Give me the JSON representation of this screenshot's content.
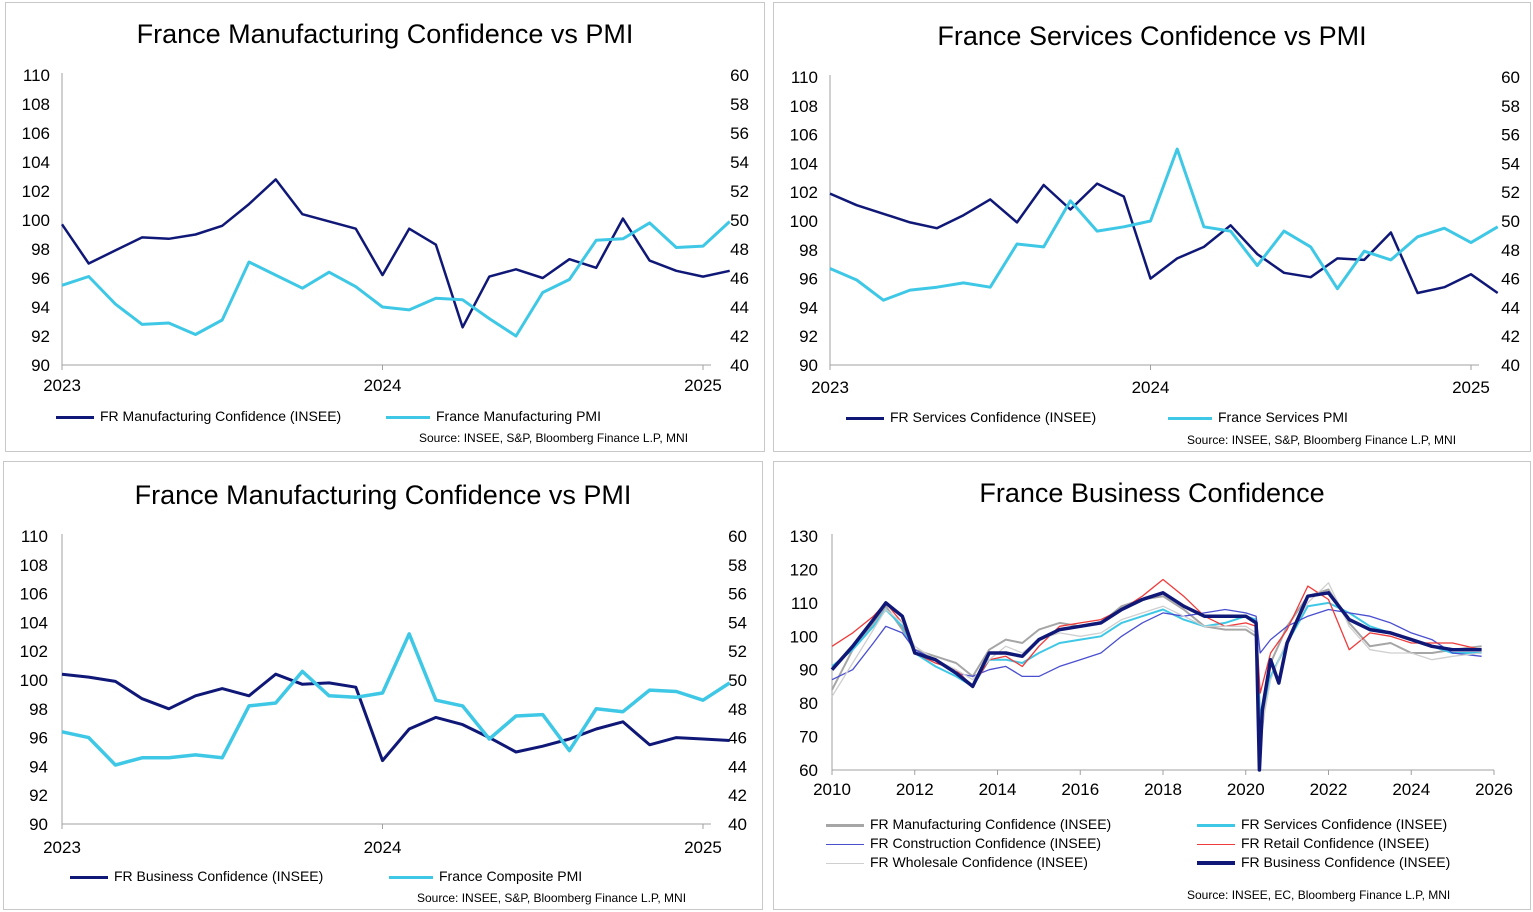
{
  "colors": {
    "navy": "#101877",
    "cyan": "#3fc8e6",
    "grey": "#a6a6a6",
    "blue": "#4a4fd0",
    "red": "#ef3b3b",
    "lightgrey": "#cfcfcf",
    "axis": "#bfbfbf"
  },
  "chart_data": [
    {
      "type": "line",
      "title": "France Manufacturing Confidence vs PMI",
      "x_ticks": [
        "2023",
        "2024",
        "2025"
      ],
      "x_range": [
        0,
        24.3
      ],
      "y_left": {
        "ticks": [
          "110",
          "108",
          "106",
          "104",
          "102",
          "100",
          "98",
          "96",
          "94",
          "92",
          "90"
        ],
        "range": [
          90,
          110
        ]
      },
      "y_right": {
        "ticks": [
          "60",
          "58",
          "56",
          "54",
          "52",
          "50",
          "48",
          "46",
          "44",
          "42",
          "40"
        ],
        "range": [
          40,
          60
        ]
      },
      "series": [
        {
          "name": "FR Manufacturing Confidence (INSEE)",
          "axis": "left",
          "color": "navy",
          "width": 2.5,
          "x": [
            0,
            1,
            2,
            3,
            4,
            5,
            6,
            7,
            8,
            9,
            10,
            11,
            12,
            13,
            14,
            15,
            16,
            17,
            18,
            19,
            20,
            21,
            22,
            23,
            24,
            25
          ],
          "values": [
            99.7,
            97.0,
            97.9,
            98.8,
            98.7,
            99.0,
            99.6,
            101.1,
            102.8,
            100.4,
            99.9,
            99.4,
            96.2,
            99.4,
            98.3,
            92.6,
            96.1,
            96.6,
            96.0,
            97.3,
            96.7,
            100.1,
            97.2,
            96.5,
            96.1,
            96.5
          ]
        },
        {
          "name": "France Manufacturing PMI",
          "axis": "right",
          "color": "cyan",
          "width": 3,
          "x": [
            0,
            1,
            2,
            3,
            4,
            5,
            6,
            7,
            8,
            9,
            10,
            11,
            12,
            13,
            14,
            15,
            16,
            17,
            18,
            19,
            20,
            21,
            22,
            23,
            24,
            25
          ],
          "values": [
            45.5,
            46.1,
            44.2,
            42.8,
            42.9,
            42.1,
            43.1,
            47.1,
            46.2,
            45.3,
            46.4,
            45.4,
            44.0,
            43.8,
            44.6,
            44.5,
            43.2,
            42.0,
            45.0,
            45.9,
            48.6,
            48.7,
            49.8,
            48.1,
            48.2,
            49.9
          ]
        }
      ],
      "legend": [
        "FR Manufacturing Confidence (INSEE)",
        "France Manufacturing PMI"
      ],
      "source": "Source: INSEE, S&P, Bloomberg Finance L.P, MNI"
    },
    {
      "type": "line",
      "title": "France Services Confidence vs PMI",
      "x_ticks": [
        "2023",
        "2024",
        "2025"
      ],
      "x_range": [
        0,
        24.3
      ],
      "y_left": {
        "ticks": [
          "110",
          "108",
          "106",
          "104",
          "102",
          "100",
          "98",
          "96",
          "94",
          "92",
          "90"
        ],
        "range": [
          90,
          110
        ]
      },
      "y_right": {
        "ticks": [
          "60",
          "58",
          "56",
          "54",
          "52",
          "50",
          "48",
          "46",
          "44",
          "42",
          "40"
        ],
        "range": [
          40,
          60
        ]
      },
      "series": [
        {
          "name": "FR Services Confidence (INSEE)",
          "axis": "left",
          "color": "navy",
          "width": 2.5,
          "x": [
            0,
            1,
            2,
            3,
            4,
            5,
            6,
            7,
            8,
            9,
            10,
            11,
            12,
            13,
            14,
            15,
            16,
            17,
            18,
            19,
            20,
            21,
            22,
            23,
            24,
            25
          ],
          "values": [
            101.9,
            101.1,
            100.5,
            99.9,
            99.5,
            100.4,
            101.5,
            99.9,
            102.5,
            100.8,
            102.6,
            101.7,
            96.0,
            97.4,
            98.2,
            99.7,
            97.7,
            96.4,
            96.1,
            97.4,
            97.3,
            99.2,
            95.0,
            95.4,
            96.3,
            95.0
          ]
        },
        {
          "name": "France Services PMI",
          "axis": "right",
          "color": "cyan",
          "width": 3,
          "x": [
            0,
            1,
            2,
            3,
            4,
            5,
            6,
            7,
            8,
            9,
            10,
            11,
            12,
            13,
            14,
            15,
            16,
            17,
            18,
            19,
            20,
            21,
            22,
            23,
            24,
            25
          ],
          "values": [
            46.7,
            45.9,
            44.5,
            45.2,
            45.4,
            45.7,
            45.4,
            48.4,
            48.2,
            51.4,
            49.3,
            49.6,
            50.0,
            55.0,
            49.6,
            49.3,
            46.9,
            49.3,
            48.2,
            45.3,
            47.9,
            47.3,
            48.9,
            49.5,
            48.5,
            49.6
          ]
        }
      ],
      "legend": [
        "FR Services Confidence (INSEE)",
        "France Services PMI"
      ],
      "source": "Source: INSEE, S&P, Bloomberg Finance L.P, MNI"
    },
    {
      "type": "line",
      "title": "France Manufacturing Confidence vs PMI",
      "x_ticks": [
        "2023",
        "2024",
        "2025"
      ],
      "x_range": [
        0,
        24.3
      ],
      "y_left": {
        "ticks": [
          "110",
          "108",
          "106",
          "104",
          "102",
          "100",
          "98",
          "96",
          "94",
          "92",
          "90"
        ],
        "range": [
          90,
          110
        ]
      },
      "y_right": {
        "ticks": [
          "60",
          "58",
          "56",
          "54",
          "52",
          "50",
          "48",
          "46",
          "44",
          "42",
          "40"
        ],
        "range": [
          40,
          60
        ]
      },
      "series": [
        {
          "name": "FR Business Confidence (INSEE)",
          "axis": "left",
          "color": "navy",
          "width": 3,
          "x": [
            0,
            1,
            2,
            3,
            4,
            5,
            6,
            7,
            8,
            9,
            10,
            11,
            12,
            13,
            14,
            15,
            16,
            17,
            18,
            19,
            20,
            21,
            22,
            23,
            24,
            25
          ],
          "values": [
            100.4,
            100.2,
            99.9,
            98.7,
            98.0,
            98.9,
            99.4,
            98.9,
            100.4,
            99.7,
            99.8,
            99.5,
            94.4,
            96.6,
            97.4,
            96.9,
            96.0,
            95.0,
            95.4,
            95.9,
            96.6,
            97.1,
            95.5,
            96.0,
            95.9,
            95.8
          ]
        },
        {
          "name": "France Composite PMI",
          "axis": "right",
          "color": "cyan",
          "width": 3.5,
          "x": [
            0,
            1,
            2,
            3,
            4,
            5,
            6,
            7,
            8,
            9,
            10,
            11,
            12,
            13,
            14,
            15,
            16,
            17,
            18,
            19,
            20,
            21,
            22,
            23,
            24,
            25
          ],
          "values": [
            46.4,
            46.0,
            44.1,
            44.6,
            44.6,
            44.8,
            44.6,
            48.2,
            48.4,
            50.6,
            48.9,
            48.8,
            49.1,
            53.2,
            48.6,
            48.2,
            45.9,
            47.5,
            47.6,
            45.1,
            48.0,
            47.8,
            49.3,
            49.2,
            48.6,
            49.8
          ]
        }
      ],
      "legend": [
        "FR Business Confidence (INSEE)",
        "France Composite PMI"
      ],
      "source": "Source: INSEE, S&P, Bloomberg Finance L.P, MNI"
    },
    {
      "type": "line",
      "title": "France Business Confidence",
      "x_ticks": [
        "2010",
        "2012",
        "2014",
        "2016",
        "2018",
        "2020",
        "2022",
        "2024",
        "2026"
      ],
      "x_range": [
        2010,
        2026
      ],
      "y_left": {
        "ticks": [
          "130",
          "120",
          "110",
          "100",
          "90",
          "80",
          "70",
          "60"
        ],
        "range": [
          60,
          130
        ]
      },
      "series": [
        {
          "name": "FR Manufacturing Confidence (INSEE)",
          "color": "grey",
          "width": 2,
          "x": [
            2010,
            2010.5,
            2011,
            2011.3,
            2011.7,
            2012,
            2012.5,
            2013,
            2013.4,
            2013.8,
            2014.2,
            2014.6,
            2015,
            2015.5,
            2016,
            2016.5,
            2017,
            2017.5,
            2018,
            2018.5,
            2019,
            2019.5,
            2020,
            2020.25,
            2020.35,
            2020.6,
            2021,
            2021.5,
            2022,
            2022.5,
            2023,
            2023.5,
            2024,
            2024.5,
            2025,
            2025.7
          ],
          "values": [
            84,
            96,
            104,
            109,
            102,
            96,
            94,
            92,
            88,
            96,
            99,
            98,
            102,
            104,
            103,
            104,
            109,
            111,
            112,
            108,
            103,
            102,
            102,
            100,
            68,
            92,
            103,
            112,
            114,
            104,
            97,
            98,
            95,
            95,
            96,
            97
          ]
        },
        {
          "name": "FR Services Confidence (INSEE)",
          "color": "cyan",
          "width": 2,
          "x": [
            2010,
            2010.5,
            2011,
            2011.3,
            2011.7,
            2012,
            2012.5,
            2013,
            2013.4,
            2013.8,
            2014.2,
            2014.6,
            2015,
            2015.5,
            2016,
            2016.5,
            2017,
            2017.5,
            2018,
            2018.5,
            2019,
            2019.5,
            2020,
            2020.25,
            2020.35,
            2020.6,
            2021,
            2021.5,
            2022,
            2022.5,
            2023,
            2023.5,
            2024,
            2024.5,
            2025,
            2025.7
          ],
          "values": [
            91,
            96,
            103,
            108,
            103,
            95,
            91,
            88,
            85,
            93,
            93,
            92,
            95,
            98,
            99,
            100,
            104,
            106,
            108,
            105,
            103,
            104,
            106,
            105,
            75,
            88,
            98,
            109,
            110,
            107,
            103,
            101,
            99,
            97,
            95,
            95
          ]
        },
        {
          "name": "FR Construction Confidence (INSEE)",
          "color": "blue",
          "width": 1.3,
          "x": [
            2010,
            2010.5,
            2011,
            2011.3,
            2011.7,
            2012,
            2012.5,
            2013,
            2013.4,
            2013.8,
            2014.2,
            2014.6,
            2015,
            2015.5,
            2016,
            2016.5,
            2017,
            2017.5,
            2018,
            2018.5,
            2019,
            2019.5,
            2020,
            2020.25,
            2020.35,
            2020.6,
            2021,
            2021.5,
            2022,
            2022.5,
            2023,
            2023.5,
            2024,
            2024.5,
            2025,
            2025.7
          ],
          "values": [
            87,
            90,
            98,
            103,
            101,
            96,
            93,
            89,
            88,
            90,
            91,
            88,
            88,
            91,
            93,
            95,
            100,
            104,
            107,
            106,
            107,
            108,
            107,
            106,
            95,
            99,
            103,
            106,
            108,
            107,
            106,
            104,
            101,
            99,
            95,
            94
          ]
        },
        {
          "name": "FR Retail Confidence (INSEE)",
          "color": "red",
          "width": 1.3,
          "x": [
            2010,
            2010.5,
            2011,
            2011.3,
            2011.7,
            2012,
            2012.5,
            2013,
            2013.4,
            2013.8,
            2014.2,
            2014.6,
            2015,
            2015.5,
            2016,
            2016.5,
            2017,
            2017.5,
            2018,
            2018.5,
            2019,
            2019.5,
            2020,
            2020.25,
            2020.35,
            2020.6,
            2021,
            2021.5,
            2022,
            2022.5,
            2023,
            2023.5,
            2024,
            2024.5,
            2025,
            2025.7
          ],
          "values": [
            97,
            101,
            106,
            110,
            104,
            95,
            92,
            90,
            85,
            93,
            94,
            91,
            97,
            103,
            104,
            105,
            108,
            112,
            117,
            112,
            106,
            103,
            104,
            103,
            83,
            95,
            102,
            115,
            111,
            96,
            101,
            100,
            98,
            98,
            98,
            96
          ]
        },
        {
          "name": "FR Wholesale Confidence (INSEE)",
          "color": "lightgrey",
          "width": 1.3,
          "x": [
            2010,
            2010.5,
            2011,
            2011.3,
            2011.7,
            2012,
            2012.5,
            2013,
            2013.4,
            2013.8,
            2014.2,
            2014.6,
            2015,
            2015.5,
            2016,
            2016.5,
            2017,
            2017.5,
            2018,
            2018.5,
            2019,
            2019.5,
            2020,
            2020.25,
            2020.35,
            2020.6,
            2021,
            2021.5,
            2022,
            2022.5,
            2023,
            2023.5,
            2024,
            2024.5,
            2025,
            2025.7
          ],
          "values": [
            82,
            92,
            102,
            108,
            104,
            97,
            93,
            90,
            87,
            93,
            97,
            95,
            99,
            101,
            100,
            101,
            105,
            107,
            109,
            106,
            103,
            103,
            103,
            101,
            70,
            87,
            99,
            110,
            116,
            103,
            96,
            95,
            95,
            93,
            94,
            95
          ]
        },
        {
          "name": "FR Business Confidence (INSEE)",
          "color": "navy",
          "width": 3.5,
          "x": [
            2010,
            2010.5,
            2011,
            2011.3,
            2011.7,
            2012,
            2012.5,
            2013,
            2013.4,
            2013.8,
            2014.2,
            2014.6,
            2015,
            2015.5,
            2016,
            2016.5,
            2017,
            2017.5,
            2018,
            2018.5,
            2019,
            2019.5,
            2020,
            2020.25,
            2020.33,
            2020.4,
            2020.6,
            2020.8,
            2021,
            2021.5,
            2022,
            2022.5,
            2023,
            2023.5,
            2024,
            2024.5,
            2025,
            2025.7
          ],
          "values": [
            90,
            97,
            105,
            110,
            106,
            95,
            93,
            89,
            85,
            95,
            95,
            94,
            99,
            102,
            103,
            104,
            108,
            111,
            113,
            109,
            106,
            106,
            106,
            104,
            58,
            78,
            93,
            86,
            98,
            112,
            113,
            105,
            102,
            101,
            99,
            97,
            96,
            96
          ]
        }
      ],
      "legend": [
        "FR Manufacturing Confidence (INSEE)",
        "FR Services Confidence (INSEE)",
        "FR Construction Confidence (INSEE)",
        "FR Retail Confidence (INSEE)",
        "FR Wholesale Confidence (INSEE)",
        "FR Business Confidence (INSEE)"
      ],
      "source": "Source: INSEE, EC, Bloomberg Finance L.P, MNI"
    }
  ]
}
